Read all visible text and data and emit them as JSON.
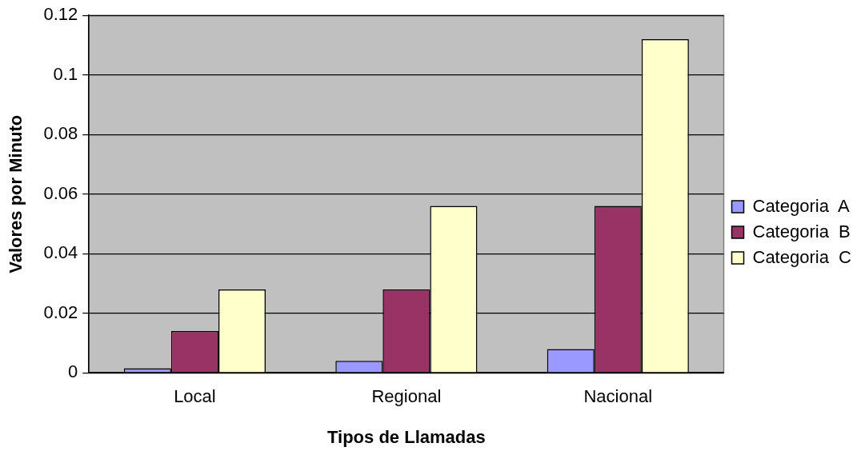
{
  "chart_data": {
    "type": "bar",
    "xlabel": "Tipos de Llamadas",
    "ylabel": "Valores por Minuto",
    "categories": [
      "Local",
      "Regional",
      "Nacional"
    ],
    "series": [
      {
        "name": "Categoria  A",
        "color": "#9999ff",
        "values": [
          0.0015,
          0.004,
          0.008
        ]
      },
      {
        "name": "Categoria  B",
        "color": "#993366",
        "values": [
          0.014,
          0.028,
          0.056
        ]
      },
      {
        "name": "Categoria  C",
        "color": "#ffffcc",
        "values": [
          0.028,
          0.056,
          0.112
        ]
      }
    ],
    "ylim": [
      0,
      0.12
    ],
    "yticks": [
      0,
      0.02,
      0.04,
      0.06,
      0.08,
      0.1,
      0.12
    ],
    "grid": "y",
    "legend": "right"
  }
}
